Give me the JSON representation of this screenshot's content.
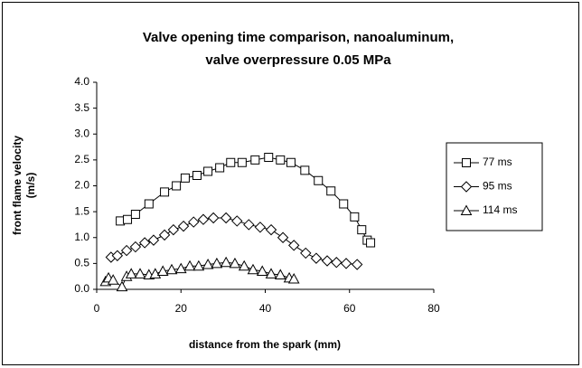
{
  "chart_data": {
    "type": "line",
    "title": [
      "Valve opening time comparison,  nanoaluminum,",
      "valve overpressure 0.05 MPa"
    ],
    "xlabel": "distance from the spark (mm)",
    "ylabel": [
      "front flame velocity",
      "(m/s)"
    ],
    "xlim": [
      0,
      80
    ],
    "xticks": [
      0,
      20,
      40,
      60,
      80
    ],
    "ylim": [
      0,
      4
    ],
    "yticks": [
      {
        "value": 0,
        "label": "0.0"
      },
      {
        "value": 0.5,
        "label": "0.5"
      },
      {
        "value": 1,
        "label": "1.0"
      },
      {
        "value": 1.5,
        "label": "1.5"
      },
      {
        "value": 2,
        "label": "2.0"
      },
      {
        "value": 2.5,
        "label": "2.5"
      },
      {
        "value": 3,
        "label": "3.0"
      },
      {
        "value": 3.5,
        "label": "3.5"
      },
      {
        "value": 4,
        "label": "4.0"
      }
    ],
    "grid": false,
    "legend": "right",
    "series": [
      {
        "name": "77 ms",
        "color": "#000000",
        "marker": "square",
        "x": [
          5.6,
          7.3,
          9.2,
          12.4,
          16.1,
          18.9,
          21.0,
          23.8,
          26.4,
          29.2,
          31.8,
          34.5,
          37.6,
          40.8,
          43.6,
          46.1,
          49.4,
          52.6,
          55.6,
          58.6,
          61.2,
          62.9,
          64.2,
          65.0
        ],
        "values": [
          1.32,
          1.35,
          1.45,
          1.65,
          1.88,
          2.0,
          2.15,
          2.2,
          2.28,
          2.35,
          2.45,
          2.45,
          2.5,
          2.55,
          2.5,
          2.45,
          2.3,
          2.1,
          1.9,
          1.65,
          1.4,
          1.15,
          0.95,
          0.9
        ]
      },
      {
        "name": "95 ms",
        "color": "#000000",
        "marker": "diamond",
        "x": [
          3.4,
          4.9,
          7.1,
          9.2,
          11.4,
          13.5,
          16.1,
          18.2,
          20.6,
          23.0,
          25.3,
          27.7,
          30.7,
          33.3,
          36.1,
          38.8,
          41.4,
          44.2,
          46.8,
          49.6,
          52.1,
          54.7,
          56.9,
          59.2,
          61.8
        ],
        "values": [
          0.62,
          0.65,
          0.75,
          0.82,
          0.9,
          0.95,
          1.05,
          1.15,
          1.22,
          1.3,
          1.35,
          1.38,
          1.38,
          1.32,
          1.25,
          1.2,
          1.15,
          1.0,
          0.85,
          0.7,
          0.6,
          0.55,
          0.52,
          0.5,
          0.48
        ]
      },
      {
        "name": "114 ms",
        "color": "#000000",
        "marker": "triangle",
        "x": [
          2.1,
          2.8,
          3.9,
          6.0,
          7.1,
          8.2,
          10.3,
          12.4,
          13.9,
          15.7,
          17.8,
          20.0,
          22.1,
          24.2,
          26.4,
          28.5,
          30.7,
          32.8,
          35.0,
          37.1,
          39.3,
          41.4,
          43.6,
          45.7,
          46.8
        ],
        "values": [
          0.15,
          0.22,
          0.18,
          0.05,
          0.25,
          0.3,
          0.3,
          0.28,
          0.3,
          0.35,
          0.38,
          0.4,
          0.45,
          0.45,
          0.48,
          0.5,
          0.52,
          0.5,
          0.45,
          0.38,
          0.35,
          0.3,
          0.28,
          0.22,
          0.2
        ]
      }
    ]
  }
}
